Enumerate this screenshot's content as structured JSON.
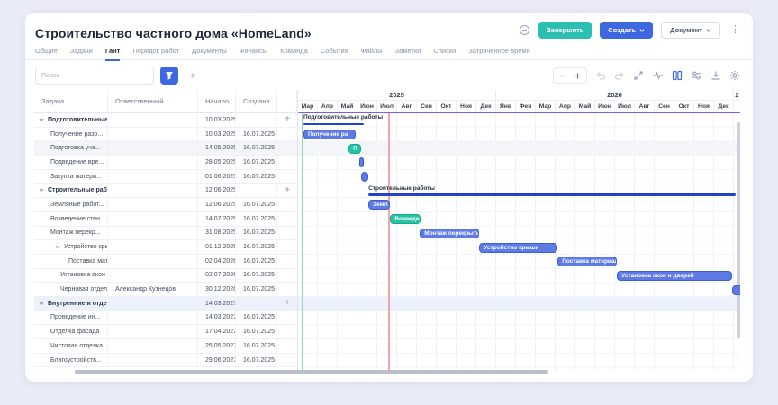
{
  "header": {
    "title": "Строительство частного дома «HomeLand»",
    "finish_label": "Завершить",
    "create_label": "Создать",
    "document_label": "Документ"
  },
  "tabs": {
    "items": [
      "Общие",
      "Задачи",
      "Гант",
      "Порядок работ",
      "Документы",
      "Финансы",
      "Команда",
      "События",
      "Файлы",
      "Заметки",
      "Списки",
      "Затраченное время"
    ],
    "active_index": 2
  },
  "toolbar": {
    "search_placeholder": "Поиск"
  },
  "table": {
    "headers": [
      "Задача",
      "Ответственный",
      "Начало",
      "Создана"
    ],
    "rows": [
      {
        "name": "Подготовительные ...",
        "responsible": "",
        "start": "10.03.2025",
        "created": "",
        "kind": "group"
      },
      {
        "name": "Получение разр...",
        "responsible": "",
        "start": "10.03.2025",
        "created": "16.07.2025",
        "kind": "task"
      },
      {
        "name": "Подготовка уча...",
        "responsible": "",
        "start": "14.05.2025",
        "created": "16.07.2025",
        "kind": "task",
        "highlight": "gray"
      },
      {
        "name": "Подведение вре...",
        "responsible": "",
        "start": "28.05.2025",
        "created": "16.07.2025",
        "kind": "task"
      },
      {
        "name": "Закупка матери...",
        "responsible": "",
        "start": "01.06.2025",
        "created": "16.07.2025",
        "kind": "task"
      },
      {
        "name": "Строительные раб...",
        "responsible": "",
        "start": "12.06.2025",
        "created": "",
        "kind": "group"
      },
      {
        "name": "Земляные работ...",
        "responsible": "",
        "start": "12.06.2025",
        "created": "16.07.2025",
        "kind": "task"
      },
      {
        "name": "Возведение стен",
        "responsible": "",
        "start": "14.07.2025",
        "created": "16.07.2025",
        "kind": "task"
      },
      {
        "name": "Монтаж перекр...",
        "responsible": "",
        "start": "31.08.2025",
        "created": "16.07.2025",
        "kind": "task"
      },
      {
        "name": "Устройство кры...",
        "responsible": "",
        "start": "01.12.2025",
        "created": "16.07.2025",
        "kind": "subgroup"
      },
      {
        "name": "Поставка мат...",
        "responsible": "",
        "start": "02.04.2026",
        "created": "16.07.2025",
        "kind": "subtask"
      },
      {
        "name": "Установка окон ...",
        "responsible": "",
        "start": "02.07.2026",
        "created": "16.07.2025",
        "kind": "subtask2"
      },
      {
        "name": "Черновая отдел...",
        "responsible": "Александр Кузнецов",
        "start": "30.12.2026",
        "created": "16.07.2025",
        "kind": "subtask2"
      },
      {
        "name": "Внутренние и отде...",
        "responsible": "",
        "start": "14.03.2027",
        "created": "",
        "kind": "group",
        "highlight": "blue"
      },
      {
        "name": "Проведение ин...",
        "responsible": "",
        "start": "14.03.2027",
        "created": "16.07.2025",
        "kind": "task"
      },
      {
        "name": "Отделка фасада",
        "responsible": "",
        "start": "17.04.2027",
        "created": "16.07.2025",
        "kind": "task"
      },
      {
        "name": "Чистовая отделка",
        "responsible": "",
        "start": "25.05.2027",
        "created": "16.07.2025",
        "kind": "task"
      },
      {
        "name": "Благоустройств...",
        "responsible": "",
        "start": "29.06.2027",
        "created": "16.07.2025",
        "kind": "task"
      }
    ]
  },
  "chart_data": {
    "type": "gantt",
    "timeline": {
      "years": [
        {
          "label": "2025",
          "months": [
            "Мар",
            "Апр",
            "Май",
            "Июн",
            "Июл",
            "Авг",
            "Сен",
            "Окт",
            "Ноя",
            "Дек"
          ]
        },
        {
          "label": "2026",
          "months": [
            "Янв",
            "Фев",
            "Мар",
            "Апр",
            "Май",
            "Июн",
            "Июл",
            "Авг",
            "Сен",
            "Окт",
            "Ноя",
            "Дек"
          ]
        },
        {
          "label": "2",
          "months": []
        }
      ]
    },
    "markers": {
      "today_month": 4.55,
      "project_start_month": 0.16
    },
    "bars": [
      {
        "row": 0,
        "type": "summary",
        "label": "Подготовительные работы",
        "start": 0.27,
        "end": 3.3
      },
      {
        "row": 1,
        "type": "task",
        "color": "blue",
        "label": "Получение ра",
        "start": 0.27,
        "end": 2.9
      },
      {
        "row": 2,
        "type": "task",
        "color": "teal",
        "label": "П",
        "start": 2.55,
        "end": 3.2
      },
      {
        "row": 3,
        "type": "task",
        "color": "blue",
        "label": "",
        "start": 3.1,
        "end": 3.3
      },
      {
        "row": 4,
        "type": "task",
        "color": "blue",
        "label": "",
        "start": 3.2,
        "end": 3.55
      },
      {
        "row": 5,
        "type": "summary",
        "label": "Строительные работы",
        "start": 3.55,
        "end": 22.1
      },
      {
        "row": 6,
        "type": "task",
        "color": "blue",
        "label": "Земл",
        "start": 3.55,
        "end": 4.65
      },
      {
        "row": 7,
        "type": "task",
        "color": "teal",
        "label": "Возведен",
        "start": 4.65,
        "end": 6.2
      },
      {
        "row": 8,
        "type": "task",
        "color": "blue",
        "label": "Монтаж перекрытий",
        "start": 6.15,
        "end": 9.15
      },
      {
        "row": 9,
        "type": "task",
        "color": "blue",
        "label": "Устройство крыши",
        "start": 9.15,
        "end": 13.1
      },
      {
        "row": 10,
        "type": "task",
        "color": "blue",
        "label": "Поставка материалов",
        "start": 13.1,
        "end": 16.1
      },
      {
        "row": 11,
        "type": "task",
        "color": "blue",
        "label": "Установка окон и дверей",
        "start": 16.1,
        "end": 21.9
      },
      {
        "row": 12,
        "type": "task",
        "color": "blue",
        "label": "",
        "start": 21.9,
        "end": 22.4
      }
    ]
  },
  "colors": {
    "accent_blue": "#3e68e0",
    "teal_button": "#2cbfb1",
    "bar_blue": "#5d7ae6",
    "bar_blue_border": "#3f5dcf",
    "bar_teal": "#27c3a4",
    "bar_teal_border": "#14aa8c",
    "summary_line": "#2443c4",
    "today_line": "#f0a5a9",
    "start_line": "#90d8b7",
    "duration_bar": "#7b5fe6",
    "highlight_gray": "#f3f5f9",
    "highlight_blue": "#edf1fb"
  }
}
